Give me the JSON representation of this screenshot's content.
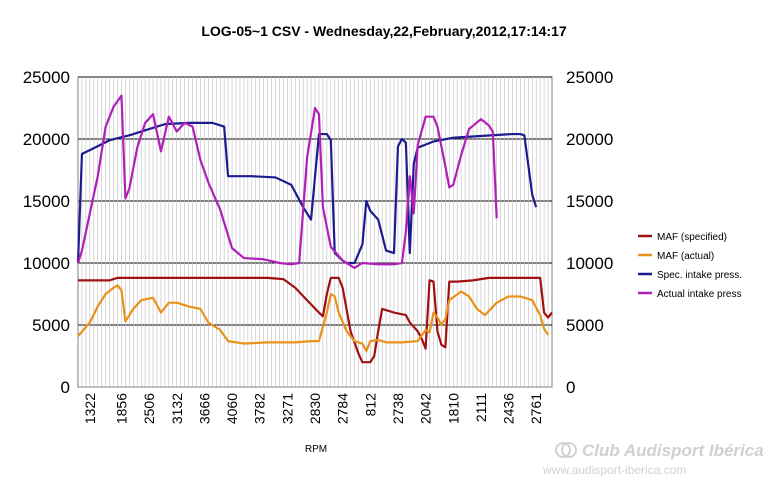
{
  "chart_data": {
    "type": "line",
    "title": "LOG-05~1 CSV - Wednesday,22,February,2012,17:14:17",
    "xlabel": "RPM",
    "ylabel": "",
    "ylim": [
      0,
      25000
    ],
    "y_ticks": [
      "0",
      "5000",
      "10000",
      "15000",
      "20000",
      "25000"
    ],
    "grid": {
      "horizontal": true,
      "vertical": true
    },
    "legend_position": "right",
    "n_points": 120,
    "x_tick_labels": [
      "1322",
      "1856",
      "2506",
      "3132",
      "3666",
      "4060",
      "3782",
      "3271",
      "2830",
      "2784",
      "812",
      "2738",
      "2042",
      "1810",
      "2111",
      "2436",
      "2761"
    ],
    "x_tick_indices": [
      3,
      11,
      18,
      25,
      32,
      39,
      46,
      53,
      60,
      67,
      74,
      81,
      88,
      95,
      102,
      109,
      116
    ],
    "series": [
      {
        "name": "MAF (specified)",
        "color": "#a01010",
        "points": [
          [
            0,
            8600
          ],
          [
            8,
            8600
          ],
          [
            10,
            8800
          ],
          [
            20,
            8800
          ],
          [
            30,
            8800
          ],
          [
            40,
            8800
          ],
          [
            48,
            8800
          ],
          [
            52,
            8700
          ],
          [
            55,
            8000
          ],
          [
            58,
            7000
          ],
          [
            61,
            6000
          ],
          [
            62,
            5700
          ],
          [
            63,
            7500
          ],
          [
            64,
            8800
          ],
          [
            66,
            8800
          ],
          [
            67,
            8000
          ],
          [
            69,
            4500
          ],
          [
            71,
            2700
          ],
          [
            72,
            2000
          ],
          [
            74,
            2000
          ],
          [
            75,
            2500
          ],
          [
            76,
            4500
          ],
          [
            77,
            6300
          ],
          [
            80,
            6000
          ],
          [
            83,
            5800
          ],
          [
            84,
            5200
          ],
          [
            86,
            4500
          ],
          [
            87,
            3900
          ],
          [
            88,
            3100
          ],
          [
            89,
            8600
          ],
          [
            90,
            8500
          ],
          [
            91,
            4500
          ],
          [
            92,
            3400
          ],
          [
            93,
            3200
          ],
          [
            94,
            8500
          ],
          [
            96,
            8500
          ],
          [
            100,
            8600
          ],
          [
            104,
            8800
          ],
          [
            110,
            8800
          ],
          [
            117,
            8800
          ],
          [
            118,
            6000
          ],
          [
            119,
            5600
          ],
          [
            120,
            6000
          ]
        ]
      },
      {
        "name": "MAF (actual)",
        "color": "#e8921a",
        "points": [
          [
            0,
            4100
          ],
          [
            3,
            5200
          ],
          [
            5,
            6500
          ],
          [
            7,
            7500
          ],
          [
            9,
            8000
          ],
          [
            10,
            8200
          ],
          [
            11,
            7800
          ],
          [
            12,
            5300
          ],
          [
            14,
            6300
          ],
          [
            16,
            7000
          ],
          [
            19,
            7200
          ],
          [
            21,
            6000
          ],
          [
            23,
            6800
          ],
          [
            25,
            6800
          ],
          [
            28,
            6500
          ],
          [
            31,
            6300
          ],
          [
            33,
            5200
          ],
          [
            36,
            4600
          ],
          [
            38,
            3700
          ],
          [
            42,
            3500
          ],
          [
            48,
            3600
          ],
          [
            55,
            3600
          ],
          [
            59,
            3700
          ],
          [
            61,
            3700
          ],
          [
            63,
            6000
          ],
          [
            64,
            7500
          ],
          [
            65,
            7300
          ],
          [
            66,
            6000
          ],
          [
            68,
            4500
          ],
          [
            70,
            3700
          ],
          [
            72,
            3500
          ],
          [
            73,
            2900
          ],
          [
            74,
            3700
          ],
          [
            76,
            3800
          ],
          [
            78,
            3600
          ],
          [
            82,
            3600
          ],
          [
            86,
            3700
          ],
          [
            88,
            4600
          ],
          [
            89,
            4400
          ],
          [
            90,
            6000
          ],
          [
            91,
            5600
          ],
          [
            92,
            5000
          ],
          [
            93,
            5500
          ],
          [
            94,
            7000
          ],
          [
            97,
            7700
          ],
          [
            99,
            7300
          ],
          [
            101,
            6300
          ],
          [
            103,
            5800
          ],
          [
            106,
            6800
          ],
          [
            109,
            7300
          ],
          [
            112,
            7300
          ],
          [
            115,
            7000
          ],
          [
            117,
            5800
          ],
          [
            118,
            4700
          ],
          [
            119,
            4200
          ]
        ]
      },
      {
        "name": "Spec. intake press.",
        "color": "#1c1c90",
        "points": [
          [
            0,
            10000
          ],
          [
            1,
            18800
          ],
          [
            3,
            19100
          ],
          [
            8,
            19900
          ],
          [
            13,
            20300
          ],
          [
            17,
            20700
          ],
          [
            22,
            21200
          ],
          [
            28,
            21300
          ],
          [
            34,
            21300
          ],
          [
            37,
            21000
          ],
          [
            38,
            17000
          ],
          [
            44,
            17000
          ],
          [
            50,
            16900
          ],
          [
            54,
            16300
          ],
          [
            57,
            14500
          ],
          [
            59,
            13500
          ],
          [
            61,
            20400
          ],
          [
            63,
            20400
          ],
          [
            64,
            19900
          ],
          [
            65,
            10800
          ],
          [
            67,
            10200
          ],
          [
            68,
            10000
          ],
          [
            70,
            10000
          ],
          [
            72,
            11500
          ],
          [
            73,
            15000
          ],
          [
            74,
            14200
          ],
          [
            76,
            13500
          ],
          [
            78,
            11000
          ],
          [
            80,
            10800
          ],
          [
            81,
            19400
          ],
          [
            82,
            20000
          ],
          [
            83,
            19700
          ],
          [
            84,
            10800
          ],
          [
            85,
            18000
          ],
          [
            86,
            19300
          ],
          [
            90,
            19800
          ],
          [
            95,
            20100
          ],
          [
            100,
            20200
          ],
          [
            105,
            20300
          ],
          [
            110,
            20400
          ],
          [
            112,
            20400
          ],
          [
            113,
            20300
          ],
          [
            115,
            15500
          ],
          [
            116,
            14500
          ]
        ]
      },
      {
        "name": "Actual intake press",
        "color": "#b01fb8",
        "points": [
          [
            0,
            10000
          ],
          [
            1,
            11000
          ],
          [
            3,
            14000
          ],
          [
            5,
            17000
          ],
          [
            7,
            21000
          ],
          [
            9,
            22600
          ],
          [
            11,
            23500
          ],
          [
            12,
            15200
          ],
          [
            13,
            16000
          ],
          [
            15,
            19300
          ],
          [
            17,
            21300
          ],
          [
            19,
            22000
          ],
          [
            21,
            19000
          ],
          [
            23,
            21800
          ],
          [
            25,
            20600
          ],
          [
            27,
            21300
          ],
          [
            29,
            21000
          ],
          [
            31,
            18300
          ],
          [
            33,
            16500
          ],
          [
            36,
            14300
          ],
          [
            39,
            11200
          ],
          [
            42,
            10400
          ],
          [
            47,
            10300
          ],
          [
            51,
            10000
          ],
          [
            54,
            9900
          ],
          [
            56,
            10000
          ],
          [
            58,
            18500
          ],
          [
            60,
            22500
          ],
          [
            61,
            22000
          ],
          [
            62,
            14500
          ],
          [
            64,
            11300
          ],
          [
            67,
            10200
          ],
          [
            70,
            9600
          ],
          [
            72,
            10000
          ],
          [
            76,
            9900
          ],
          [
            80,
            9900
          ],
          [
            82,
            10000
          ],
          [
            83,
            12500
          ],
          [
            84,
            17000
          ],
          [
            85,
            14000
          ],
          [
            86,
            19500
          ],
          [
            88,
            21800
          ],
          [
            90,
            21800
          ],
          [
            91,
            21000
          ],
          [
            93,
            17800
          ],
          [
            94,
            16100
          ],
          [
            95,
            16300
          ],
          [
            97,
            18700
          ],
          [
            99,
            20800
          ],
          [
            102,
            21600
          ],
          [
            104,
            21100
          ],
          [
            105,
            20600
          ],
          [
            106,
            13600
          ]
        ]
      }
    ]
  },
  "watermark": {
    "brand": "Club Audisport Ibérica",
    "url": "www.audisport-iberica.com"
  }
}
